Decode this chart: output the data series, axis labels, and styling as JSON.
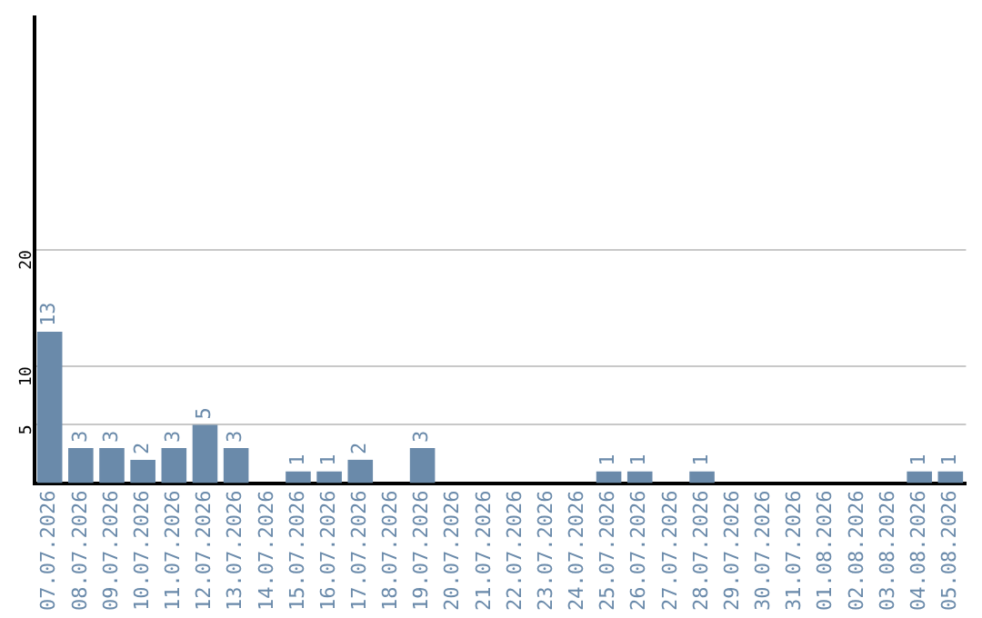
{
  "chart_data": {
    "type": "bar",
    "categories": [
      "07.07.2026",
      "08.07.2026",
      "09.07.2026",
      "10.07.2026",
      "11.07.2026",
      "12.07.2026",
      "13.07.2026",
      "14.07.2026",
      "15.07.2026",
      "16.07.2026",
      "17.07.2026",
      "18.07.2026",
      "19.07.2026",
      "20.07.2026",
      "21.07.2026",
      "22.07.2026",
      "23.07.2026",
      "24.07.2026",
      "25.07.2026",
      "26.07.2026",
      "27.07.2026",
      "28.07.2026",
      "29.07.2026",
      "30.07.2026",
      "31.07.2026",
      "01.08.2026",
      "02.08.2026",
      "03.08.2026",
      "04.08.2026",
      "05.08.2026"
    ],
    "values": [
      13,
      3,
      3,
      2,
      3,
      5,
      3,
      0,
      1,
      1,
      2,
      0,
      3,
      0,
      0,
      0,
      0,
      0,
      1,
      1,
      0,
      1,
      0,
      0,
      0,
      0,
      0,
      0,
      1,
      1
    ],
    "value_labels": [
      "13",
      "3",
      "3",
      "2",
      "3",
      "5",
      "3",
      null,
      "1",
      "1",
      "2",
      null,
      "3",
      null,
      null,
      null,
      null,
      null,
      "1",
      "1",
      null,
      "1",
      null,
      null,
      null,
      null,
      null,
      null,
      "1",
      "1"
    ],
    "color": "#6a8aaa",
    "ylim": [
      0,
      40
    ],
    "yticks": [
      5,
      10,
      20
    ],
    "grid": "y",
    "legend": false
  }
}
